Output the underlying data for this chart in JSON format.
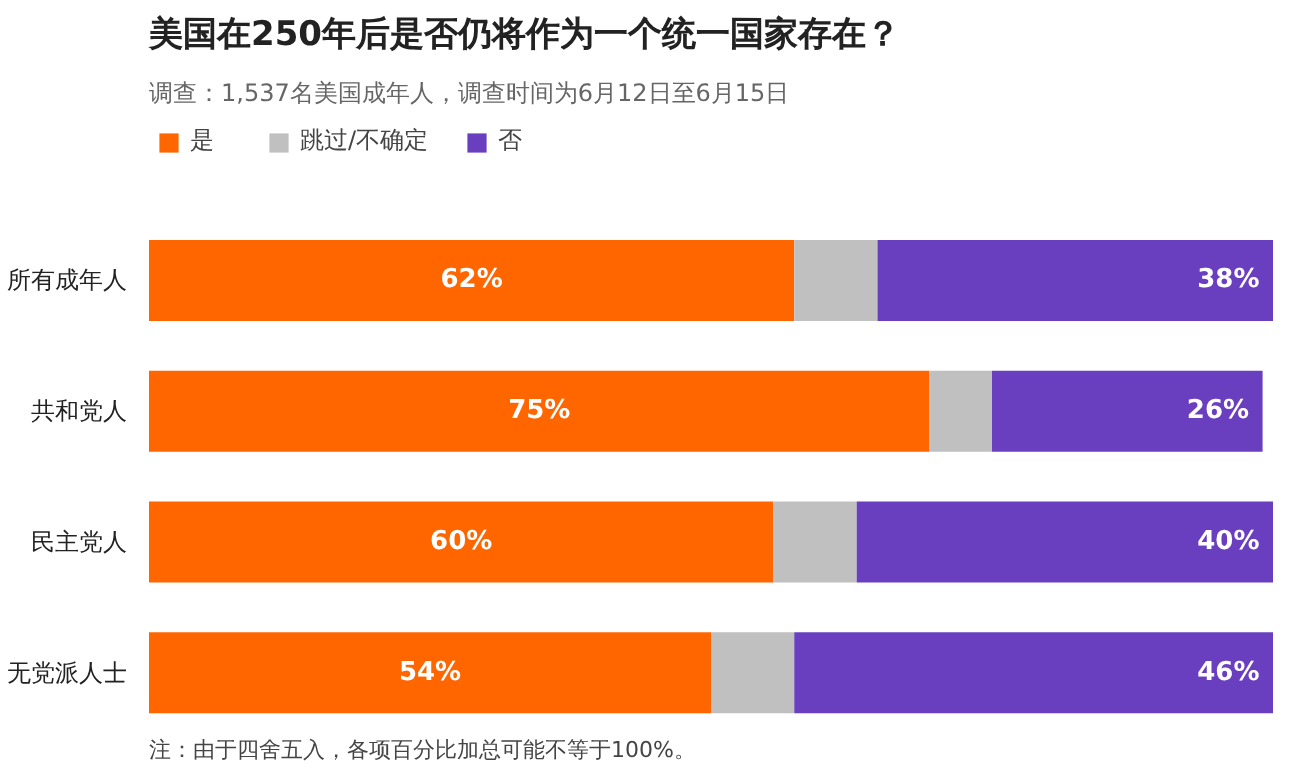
{
  "chart_data": {
    "type": "bar",
    "orientation": "horizontal",
    "stacked": true,
    "title": "美国在250年后是否仍将作为一个统一国家存在？",
    "subtitle": "调查：1,537名美国成年人，调查时间为6月12日至6月15日",
    "categories": [
      "所有成年人",
      "共和党人",
      "民主党人",
      "无党派人士"
    ],
    "series": [
      {
        "name": "是",
        "color": "#ff6600",
        "values": [
          62,
          75,
          60,
          54
        ],
        "value_labels": [
          "62%",
          "75%",
          "60%",
          "54%"
        ]
      },
      {
        "name": "跳过/不确定",
        "color": "#c0c0c0",
        "values": [
          8,
          6,
          8,
          8
        ],
        "value_labels": [
          null,
          null,
          null,
          null
        ]
      },
      {
        "name": "否",
        "color": "#6a3fbf",
        "values": [
          38,
          26,
          40,
          46
        ],
        "value_labels": [
          "38%",
          "26%",
          "40%",
          "46%"
        ]
      }
    ],
    "legend": "top left",
    "grid": false,
    "annotations": [
      "注：由于四舍五入，各项百分比加总可能不等于100%。"
    ]
  }
}
